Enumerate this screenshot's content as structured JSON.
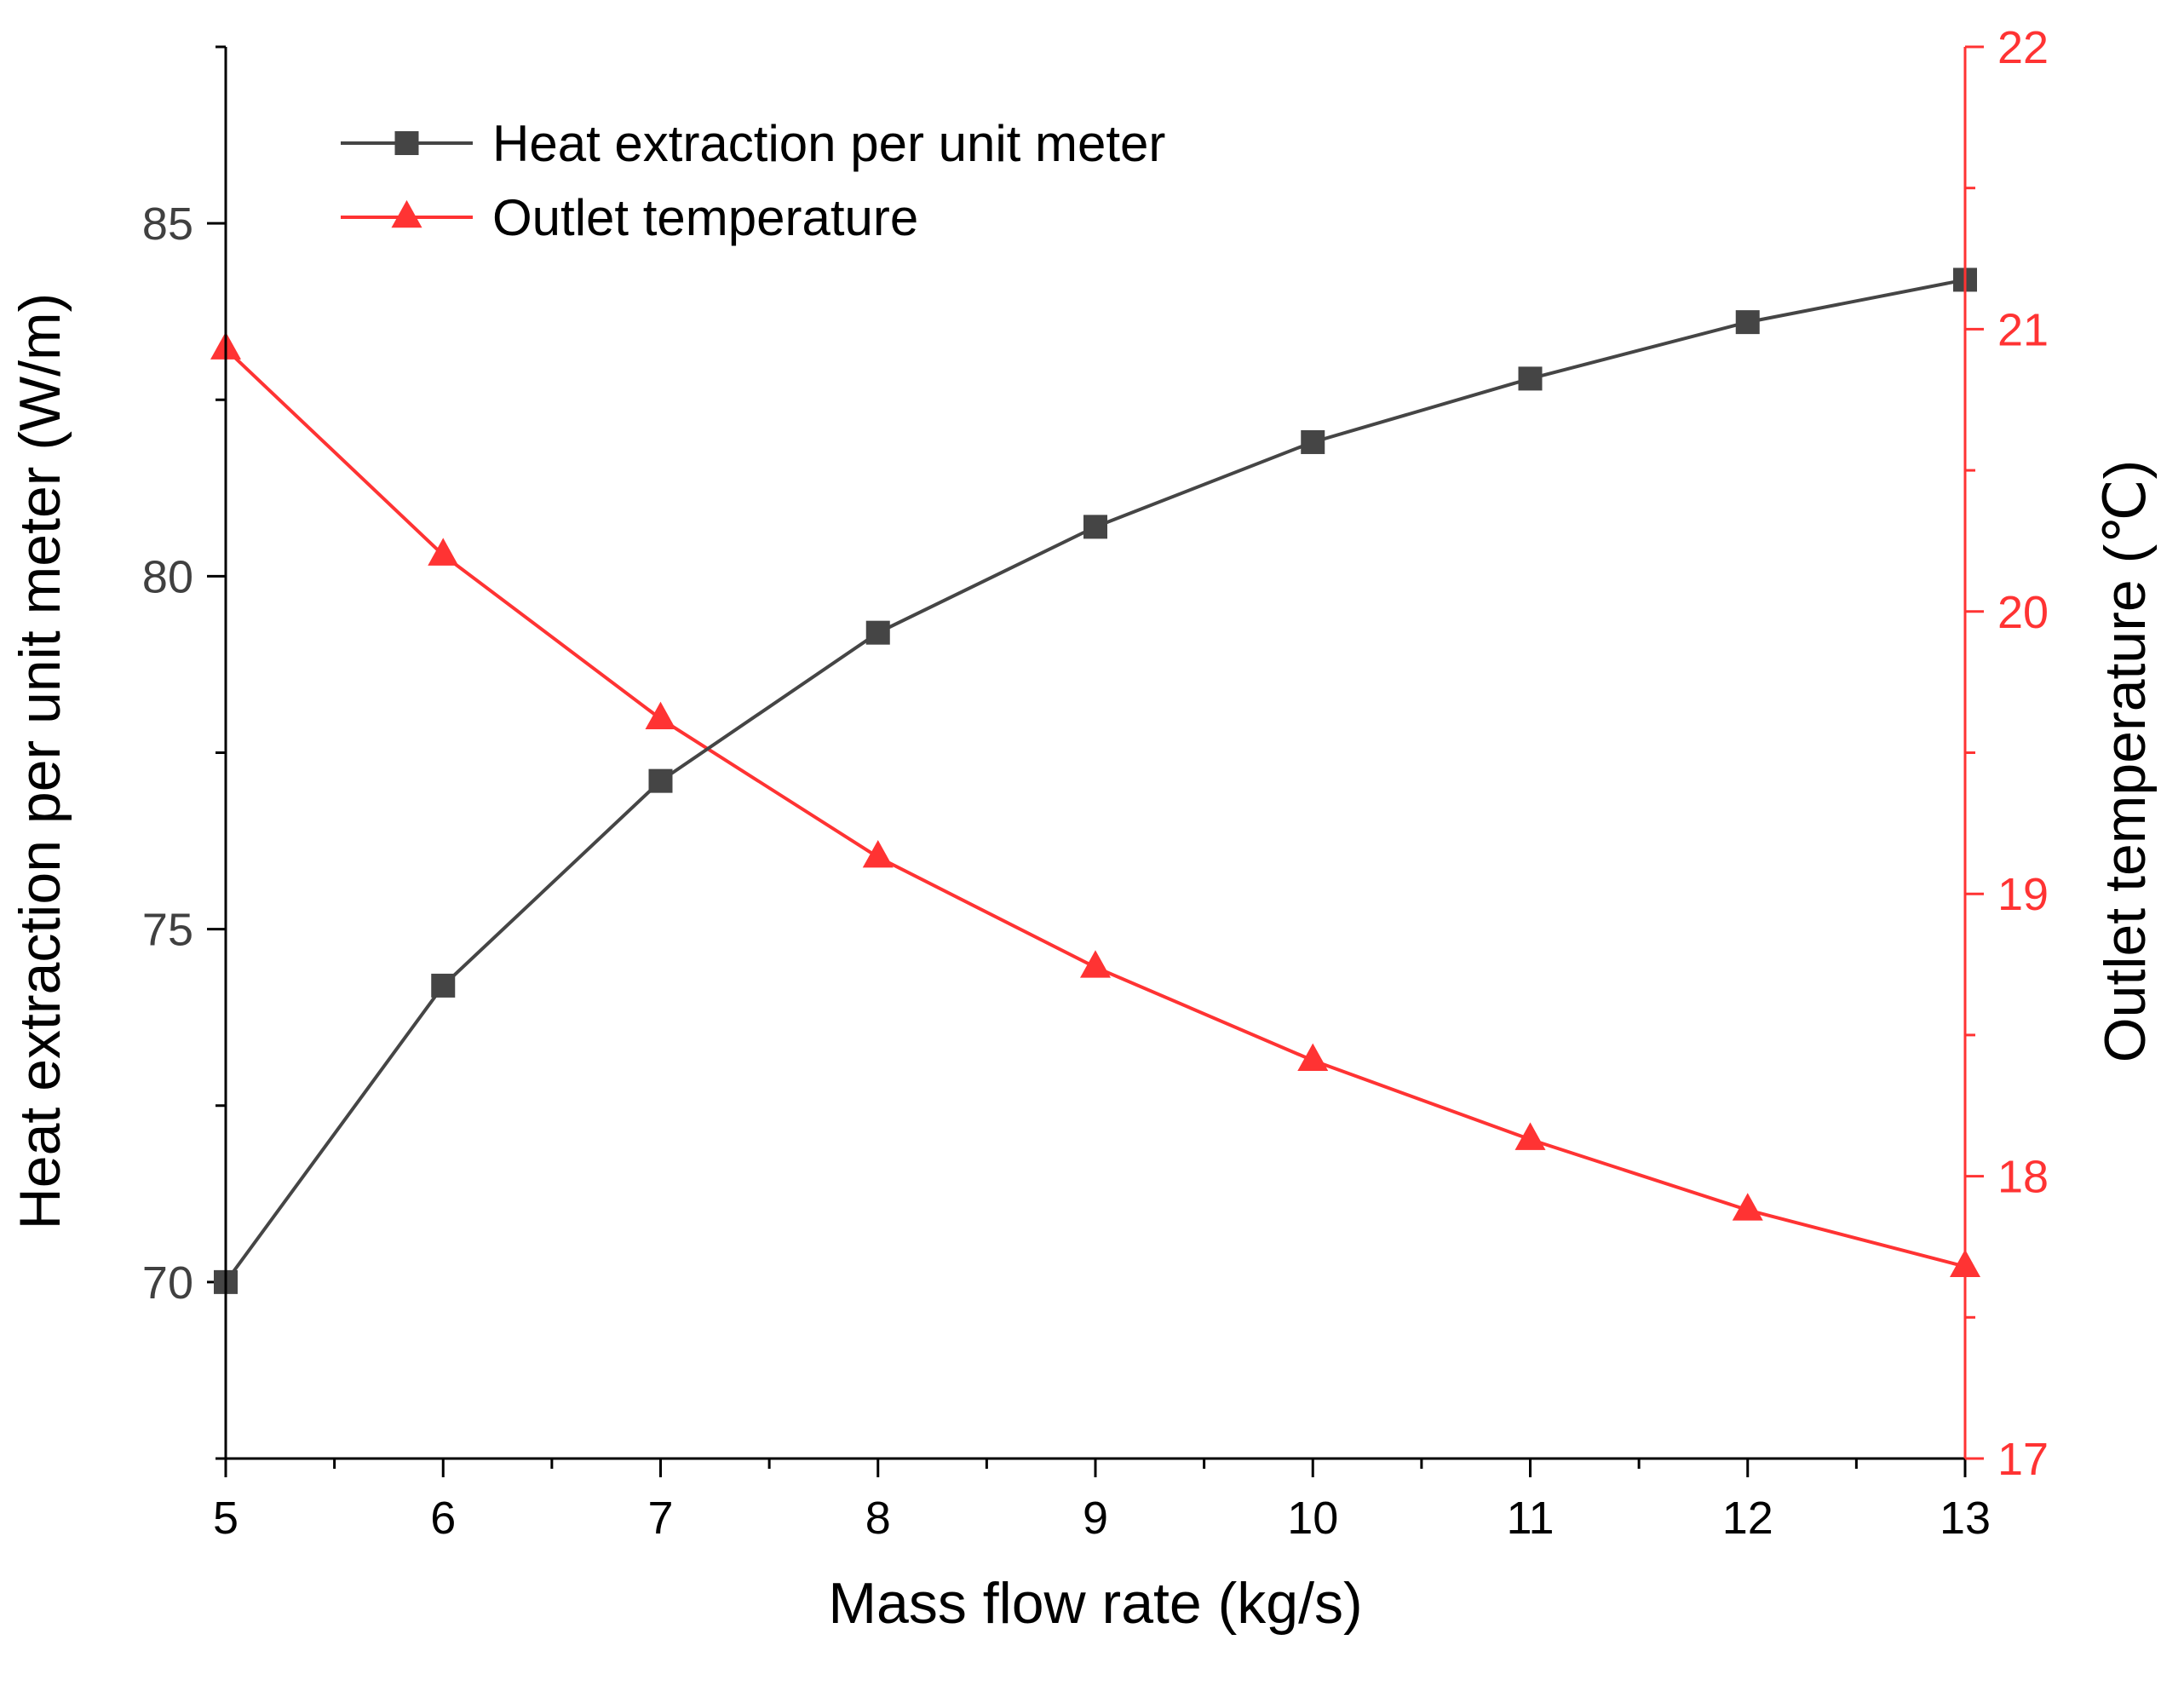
{
  "chart_data": {
    "type": "line",
    "title": "",
    "xlabel": "Mass flow rate (kg/s)",
    "ylabel": "Heat extraction per unit meter (W/m)",
    "y2label": "Outlet temperature (℃)",
    "xlim": [
      5,
      13
    ],
    "ylim": [
      67.5,
      87.5
    ],
    "y2lim": [
      17,
      22
    ],
    "x_ticks": [
      5,
      6,
      7,
      8,
      9,
      10,
      11,
      12,
      13
    ],
    "y_ticks": [
      70,
      75,
      80,
      85
    ],
    "y2_ticks": [
      17,
      18,
      19,
      20,
      21,
      22
    ],
    "x": [
      5,
      6,
      7,
      8,
      9,
      10,
      11,
      12,
      13
    ],
    "series": [
      {
        "name": "Heat extraction per unit meter",
        "axis": "left",
        "marker": "square",
        "color": "#454545",
        "values": [
          70.0,
          74.2,
          77.1,
          79.2,
          80.7,
          81.9,
          82.8,
          83.6,
          84.2
        ]
      },
      {
        "name": "Outlet temperature",
        "axis": "right",
        "marker": "triangle",
        "color": "#ff3333",
        "values": [
          20.93,
          20.2,
          19.62,
          19.13,
          18.74,
          18.41,
          18.13,
          17.88,
          17.68
        ]
      }
    ],
    "colors": {
      "left_axis": "#000000",
      "left_tick_labels": "#404040",
      "right_axis": "#ff3333"
    },
    "legend": {
      "placement": "top-left"
    }
  }
}
